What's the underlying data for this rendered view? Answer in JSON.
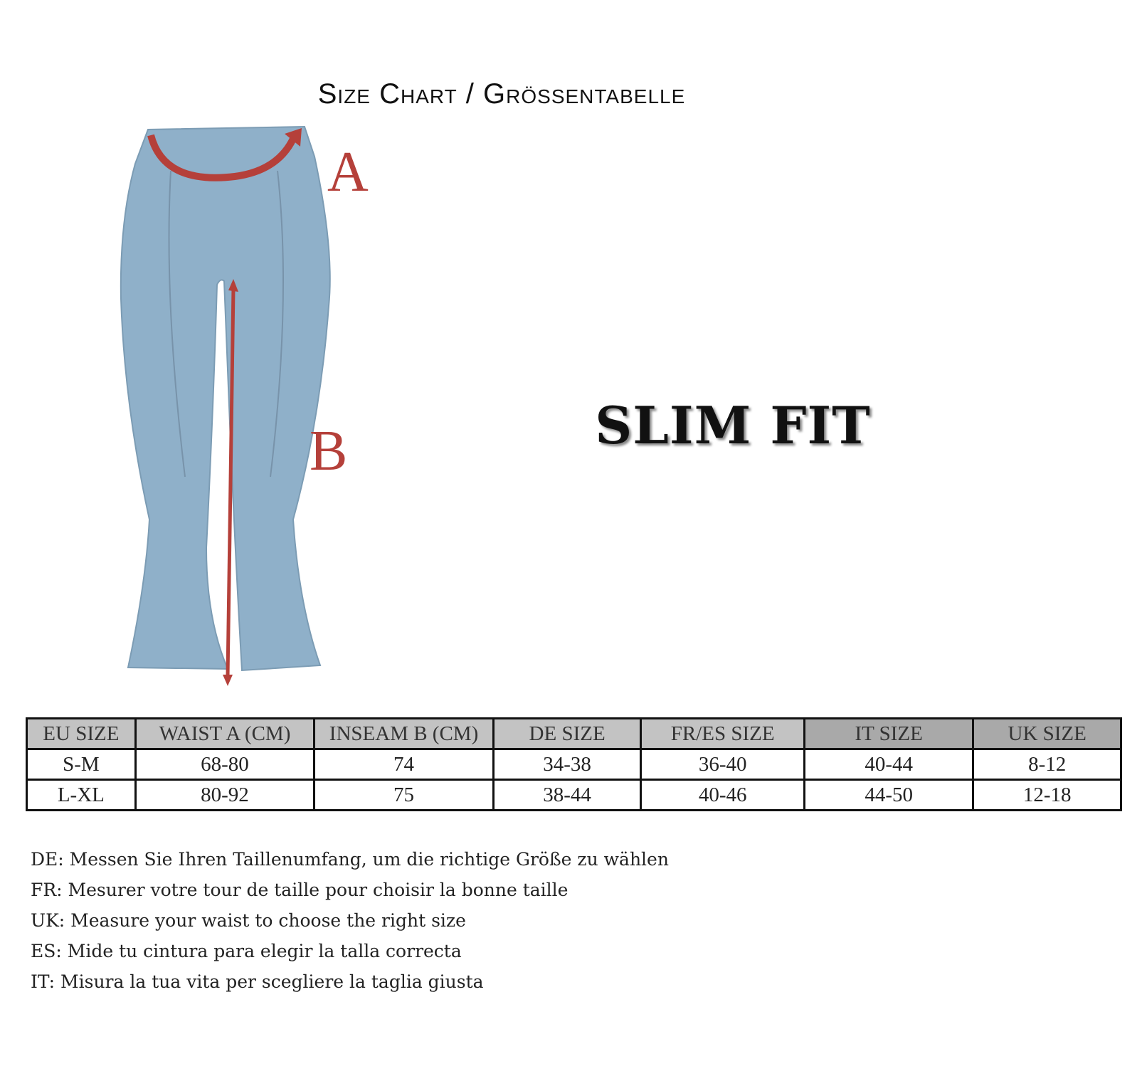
{
  "title": "Size Chart / Grössentabelle",
  "diagram": {
    "label_a": "A",
    "label_b": "B",
    "accent_color": "#b5403a",
    "garment_color": "#8fb0c9"
  },
  "fit_label": "SLIM FIT",
  "table": {
    "headers": [
      "EU SIZE",
      "WAIST A (CM)",
      "INSEAM B (CM)",
      "DE SIZE",
      "FR/ES SIZE",
      "IT SIZE",
      "UK SIZE"
    ],
    "rows": [
      [
        "S-M",
        "68-80",
        "74",
        "34-38",
        "36-40",
        "40-44",
        "8-12"
      ],
      [
        "L-XL",
        "80-92",
        "75",
        "38-44",
        "40-46",
        "44-50",
        "12-18"
      ]
    ]
  },
  "notes": [
    "DE: Messen Sie Ihren Taillenumfang, um die richtige Größe zu wählen",
    "FR: Mesurer votre tour de taille pour choisir la bonne taille",
    "UK: Measure your waist to choose the right size",
    "ES: Mide tu cintura para elegir la talla correcta",
    "IT: Misura la tua vita per scegliere la taglia giusta"
  ]
}
